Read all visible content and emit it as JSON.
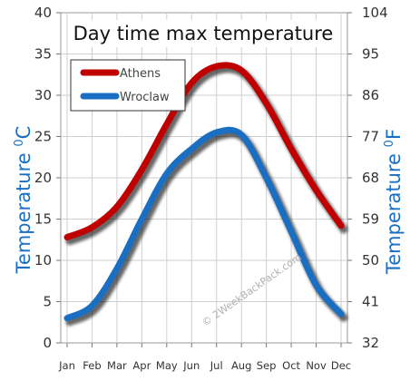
{
  "chart_data": {
    "type": "line",
    "title": "Day time max temperature",
    "categories": [
      "Jan",
      "Feb",
      "Mar",
      "Apr",
      "May",
      "Jun",
      "Jul",
      "Aug",
      "Sep",
      "Oct",
      "Nov",
      "Dec"
    ],
    "series": [
      {
        "name": "Athens",
        "color": "#c00000",
        "values": [
          12.8,
          14.0,
          16.5,
          21.0,
          26.5,
          31.5,
          33.5,
          33.0,
          29.0,
          23.5,
          18.5,
          14.2
        ]
      },
      {
        "name": "Wroclaw",
        "color": "#1a6fc2",
        "values": [
          3.0,
          4.5,
          9.0,
          15.0,
          20.5,
          23.5,
          25.5,
          25.2,
          20.0,
          13.5,
          7.0,
          3.5
        ]
      }
    ],
    "y_left": {
      "label": "Temperature",
      "unit": "C",
      "degree": "0",
      "min": 0,
      "max": 40,
      "ticks": [
        "0",
        "5",
        "10",
        "15",
        "20",
        "25",
        "30",
        "35",
        "40"
      ]
    },
    "y_right": {
      "label": "Temperature",
      "unit": "F",
      "degree": "0",
      "min": 32,
      "max": 104,
      "ticks": [
        "32",
        "41",
        "50",
        "59",
        "68",
        "77",
        "86",
        "95",
        "104"
      ]
    },
    "grid": true,
    "legend": "top-left",
    "watermark": "© 2WeekBackPack.com"
  }
}
